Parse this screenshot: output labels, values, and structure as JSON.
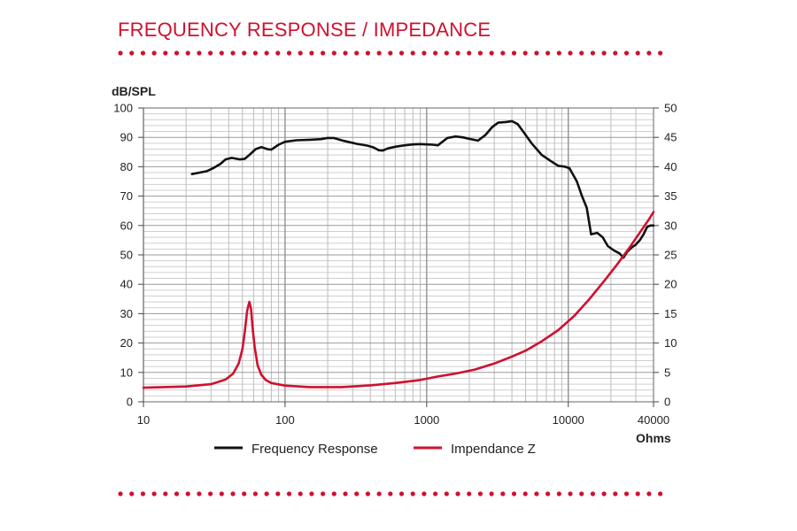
{
  "page": {
    "title": "FREQUENCY RESPONSE / IMPEDANCE",
    "accent_color": "#d0102f",
    "dot_color": "#d0102f"
  },
  "chart_data": {
    "type": "line",
    "title": "FREQUENCY RESPONSE / IMPEDANCE",
    "x_scale": "log",
    "xlim": [
      10,
      40000
    ],
    "x_tick_labels": [
      "10",
      "100",
      "1000",
      "10000",
      "40000"
    ],
    "x_tick_values": [
      10,
      100,
      1000,
      10000,
      40000
    ],
    "xlabel": "",
    "x_unit_label": "Ohms",
    "ylabel_left": "dB/SPL",
    "ylim_left": [
      0,
      100
    ],
    "y_ticks_left": [
      0,
      10,
      20,
      30,
      40,
      50,
      60,
      70,
      80,
      90,
      100
    ],
    "ylim_right": [
      0,
      50
    ],
    "y_ticks_right": [
      0,
      5,
      10,
      15,
      20,
      25,
      30,
      35,
      40,
      45,
      50
    ],
    "grid": true,
    "legend_position": "bottom-center",
    "series": [
      {
        "name": "Frequency Response",
        "color": "#111111",
        "axis": "left",
        "points": [
          [
            22,
            77.5
          ],
          [
            25,
            78
          ],
          [
            28,
            78.5
          ],
          [
            31,
            79.5
          ],
          [
            35,
            81
          ],
          [
            38,
            82.5
          ],
          [
            42,
            83
          ],
          [
            48,
            82.5
          ],
          [
            52,
            82.7
          ],
          [
            56,
            84
          ],
          [
            62,
            86
          ],
          [
            68,
            86.7
          ],
          [
            75,
            86
          ],
          [
            80,
            85.8
          ],
          [
            90,
            87.5
          ],
          [
            100,
            88.5
          ],
          [
            120,
            89
          ],
          [
            150,
            89.2
          ],
          [
            180,
            89.4
          ],
          [
            200,
            89.8
          ],
          [
            220,
            89.8
          ],
          [
            260,
            88.8
          ],
          [
            320,
            87.8
          ],
          [
            380,
            87.2
          ],
          [
            420,
            86.6
          ],
          [
            460,
            85.6
          ],
          [
            490,
            85.5
          ],
          [
            530,
            86.2
          ],
          [
            600,
            86.8
          ],
          [
            700,
            87.3
          ],
          [
            800,
            87.6
          ],
          [
            900,
            87.7
          ],
          [
            1000,
            87.6
          ],
          [
            1100,
            87.5
          ],
          [
            1200,
            87.3
          ],
          [
            1400,
            89.8
          ],
          [
            1600,
            90.3
          ],
          [
            1800,
            90
          ],
          [
            2000,
            89.5
          ],
          [
            2300,
            88.9
          ],
          [
            2600,
            90.8
          ],
          [
            2900,
            93.5
          ],
          [
            3200,
            95
          ],
          [
            3600,
            95.2
          ],
          [
            4000,
            95.5
          ],
          [
            4400,
            94.5
          ],
          [
            4800,
            92
          ],
          [
            5500,
            88
          ],
          [
            6500,
            84
          ],
          [
            7500,
            82
          ],
          [
            8500,
            80.3
          ],
          [
            9500,
            80
          ],
          [
            10200,
            79.5
          ],
          [
            11500,
            75
          ],
          [
            12500,
            70
          ],
          [
            13500,
            66
          ],
          [
            14500,
            57
          ],
          [
            16000,
            57.5
          ],
          [
            17500,
            56
          ],
          [
            19000,
            53
          ],
          [
            21000,
            51.5
          ],
          [
            23000,
            50.5
          ],
          [
            24500,
            49
          ],
          [
            26000,
            51
          ],
          [
            28000,
            52.5
          ],
          [
            30000,
            53.5
          ],
          [
            32000,
            55
          ],
          [
            34000,
            57
          ],
          [
            36000,
            59.5
          ],
          [
            38000,
            60
          ],
          [
            40000,
            60
          ]
        ]
      },
      {
        "name": "Impendance Z",
        "color": "#d0102f",
        "axis": "right",
        "points": [
          [
            10,
            2.4
          ],
          [
            20,
            2.6
          ],
          [
            30,
            3.0
          ],
          [
            38,
            3.8
          ],
          [
            43,
            4.8
          ],
          [
            47,
            6.5
          ],
          [
            50,
            9
          ],
          [
            52,
            12
          ],
          [
            54,
            15.5
          ],
          [
            56,
            17
          ],
          [
            57.5,
            15.8
          ],
          [
            59,
            12.5
          ],
          [
            61,
            9.3
          ],
          [
            64,
            6.2
          ],
          [
            68,
            4.6
          ],
          [
            73,
            3.7
          ],
          [
            80,
            3.2
          ],
          [
            100,
            2.75
          ],
          [
            150,
            2.5
          ],
          [
            250,
            2.5
          ],
          [
            400,
            2.8
          ],
          [
            600,
            3.2
          ],
          [
            900,
            3.7
          ],
          [
            1200,
            4.3
          ],
          [
            1600,
            4.8
          ],
          [
            2200,
            5.5
          ],
          [
            3000,
            6.5
          ],
          [
            4000,
            7.7
          ],
          [
            5000,
            8.7
          ],
          [
            6500,
            10.3
          ],
          [
            8500,
            12.2
          ],
          [
            11000,
            14.6
          ],
          [
            14000,
            17.4
          ],
          [
            18000,
            20.6
          ],
          [
            22000,
            23.3
          ],
          [
            27000,
            26.2
          ],
          [
            32000,
            28.8
          ],
          [
            37000,
            31
          ],
          [
            40000,
            32.3
          ]
        ]
      }
    ]
  }
}
